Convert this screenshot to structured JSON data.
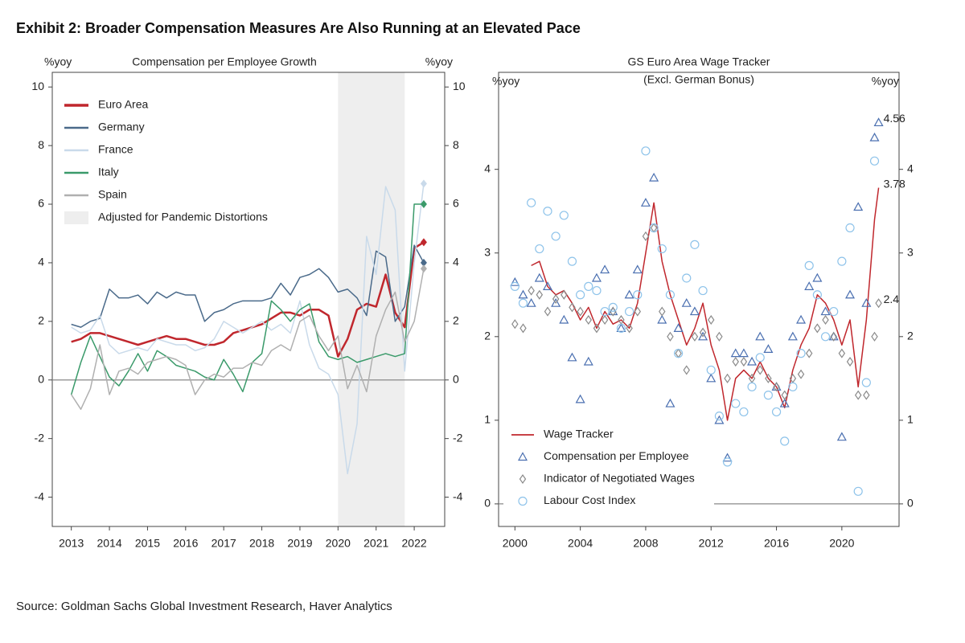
{
  "title": "Exhibit 2: Broader Compensation Measures Are Also Running at an Elevated Pace",
  "source": "Source: Goldman Sachs Global Investment Research, Haver Analytics",
  "chart_data": [
    {
      "type": "line",
      "title": "Compensation per Employee Growth",
      "y_label": "%yoy",
      "y2_label": "%yoy",
      "xlim": [
        2012.5,
        2022.8
      ],
      "xticks": [
        2013,
        2014,
        2015,
        2016,
        2017,
        2018,
        2019,
        2020,
        2021,
        2022
      ],
      "ylim": [
        -5,
        10.5
      ],
      "yticks": [
        -4,
        -2,
        0,
        2,
        4,
        6,
        8,
        10
      ],
      "y2lim": [
        -5,
        10.5
      ],
      "y2ticks": [
        -4,
        -2,
        0,
        2,
        4,
        6,
        8,
        10
      ],
      "zero_line": true,
      "end_markers": true,
      "legend": "upper left",
      "shade": {
        "x": [
          2020,
          2021.75
        ],
        "label": "Adjusted for Pandemic Distortions",
        "color": "#eeeeee"
      },
      "x": [
        2013,
        2013.25,
        2013.5,
        2013.75,
        2014,
        2014.25,
        2014.5,
        2014.75,
        2015,
        2015.25,
        2015.5,
        2015.75,
        2016,
        2016.25,
        2016.5,
        2016.75,
        2017,
        2017.25,
        2017.5,
        2017.75,
        2018,
        2018.25,
        2018.5,
        2018.75,
        2019,
        2019.25,
        2019.5,
        2019.75,
        2020,
        2020.25,
        2020.5,
        2020.75,
        2021,
        2021.25,
        2021.5,
        2021.75,
        2022,
        2022.25
      ],
      "series": [
        {
          "name": "Euro Area",
          "color": "#c0272d",
          "width": 2.5,
          "values": [
            1.3,
            1.4,
            1.6,
            1.6,
            1.5,
            1.4,
            1.3,
            1.2,
            1.3,
            1.4,
            1.5,
            1.4,
            1.4,
            1.3,
            1.2,
            1.2,
            1.3,
            1.6,
            1.7,
            1.8,
            1.9,
            2.1,
            2.3,
            2.3,
            2.2,
            2.4,
            2.4,
            2.2,
            0.8,
            1.4,
            2.4,
            2.6,
            2.5,
            3.6,
            2.3,
            1.8,
            4.5,
            4.7
          ]
        },
        {
          "name": "Germany",
          "color": "#4a6a8a",
          "width": 1.5,
          "values": [
            1.9,
            1.8,
            2.0,
            2.1,
            3.1,
            2.8,
            2.8,
            2.9,
            2.6,
            3.0,
            2.8,
            3.0,
            2.9,
            2.9,
            2.0,
            2.3,
            2.4,
            2.6,
            2.7,
            2.7,
            2.7,
            2.8,
            3.3,
            2.9,
            3.5,
            3.6,
            3.8,
            3.5,
            3.0,
            3.1,
            2.8,
            2.2,
            4.4,
            4.2,
            2.0,
            2.5,
            4.6,
            4.0
          ]
        },
        {
          "name": "France",
          "color": "#c9daea",
          "width": 1.5,
          "values": [
            1.8,
            1.6,
            1.7,
            2.2,
            1.2,
            0.9,
            1.0,
            1.1,
            1.0,
            1.4,
            1.3,
            1.2,
            1.2,
            1.0,
            1.1,
            1.4,
            2.0,
            1.8,
            1.6,
            1.8,
            2.0,
            1.7,
            1.9,
            1.6,
            2.7,
            1.2,
            0.4,
            0.2,
            -0.5,
            -3.2,
            -1.5,
            4.9,
            3.6,
            6.6,
            5.8,
            0.3,
            4.0,
            6.7
          ]
        },
        {
          "name": "Italy",
          "color": "#3a9a6a",
          "width": 1.5,
          "values": [
            -0.5,
            0.6,
            1.5,
            0.8,
            0.1,
            -0.2,
            0.3,
            0.9,
            0.3,
            1.0,
            0.8,
            0.5,
            0.4,
            0.3,
            0.1,
            0.0,
            0.7,
            0.2,
            -0.4,
            0.6,
            0.9,
            2.7,
            2.4,
            2.0,
            2.4,
            2.6,
            1.3,
            0.8,
            0.7,
            0.8,
            0.6,
            0.7,
            0.8,
            0.9,
            0.8,
            0.9,
            6.0,
            6.0
          ]
        },
        {
          "name": "Spain",
          "color": "#b0b0b0",
          "width": 1.5,
          "values": [
            -0.5,
            -1.0,
            -0.3,
            1.2,
            -0.5,
            0.3,
            0.4,
            0.2,
            0.6,
            0.7,
            0.8,
            0.7,
            0.5,
            -0.5,
            0.0,
            0.2,
            0.1,
            0.4,
            0.4,
            0.6,
            0.5,
            1.0,
            1.2,
            1.0,
            2.0,
            2.2,
            1.5,
            1.0,
            1.5,
            -0.3,
            0.5,
            -0.4,
            1.5,
            2.4,
            3.0,
            1.3,
            2.0,
            3.8
          ]
        }
      ]
    },
    {
      "type": "line",
      "title": "GS Euro Area Wage Tracker",
      "subtitle": "(Excl. German Bonus)",
      "y_label": "%yoy",
      "y2_label": "%yoy",
      "xlim": [
        1999,
        2023.5
      ],
      "xticks": [
        2000,
        2004,
        2008,
        2012,
        2016,
        2020
      ],
      "ylim": [
        -0.27,
        5.16
      ],
      "yticks": [
        0,
        1,
        2,
        3,
        4
      ],
      "y2lim": [
        -0.27,
        5.16
      ],
      "y2ticks": [
        0,
        1,
        2,
        3,
        4
      ],
      "zero_line": true,
      "legend": "lower left",
      "x": [
        2000,
        2000.5,
        2001,
        2001.5,
        2002,
        2002.5,
        2003,
        2003.5,
        2004,
        2004.5,
        2005,
        2005.5,
        2006,
        2006.5,
        2007,
        2007.5,
        2008,
        2008.5,
        2009,
        2009.5,
        2010,
        2010.5,
        2011,
        2011.5,
        2012,
        2012.5,
        2013,
        2013.5,
        2014,
        2014.5,
        2015,
        2015.5,
        2016,
        2016.5,
        2017,
        2017.5,
        2018,
        2018.5,
        2019,
        2019.5,
        2020,
        2020.5,
        2021,
        2021.5,
        2022,
        2022.25
      ],
      "series": [
        {
          "name": "Wage Tracker",
          "color": "#c0272d",
          "marker": "line",
          "end_label": true,
          "values": [
            null,
            null,
            2.85,
            2.9,
            2.6,
            2.5,
            2.55,
            2.4,
            2.2,
            2.35,
            2.1,
            2.3,
            2.15,
            2.2,
            2.1,
            2.4,
            3.0,
            3.6,
            2.9,
            2.5,
            2.2,
            1.9,
            2.1,
            2.4,
            1.9,
            1.6,
            1.0,
            1.5,
            1.6,
            1.5,
            1.7,
            1.5,
            1.4,
            1.15,
            1.6,
            1.9,
            2.1,
            2.5,
            2.4,
            2.2,
            1.9,
            2.2,
            1.4,
            2.2,
            3.4,
            3.78
          ]
        },
        {
          "name": "Compensation per Employee",
          "color": "#4a6fb0",
          "marker": "triangle",
          "end_label": true,
          "values": [
            2.65,
            2.5,
            2.4,
            2.7,
            2.6,
            2.4,
            2.2,
            1.75,
            1.25,
            1.7,
            2.7,
            2.8,
            2.3,
            2.1,
            2.5,
            2.8,
            3.6,
            3.9,
            2.2,
            1.2,
            2.1,
            2.4,
            2.3,
            2.0,
            1.5,
            1.0,
            0.55,
            1.8,
            1.8,
            1.7,
            2.0,
            1.85,
            1.4,
            1.2,
            2.0,
            2.2,
            2.6,
            2.7,
            2.3,
            2.0,
            0.8,
            2.5,
            3.55,
            2.4,
            4.38,
            4.56
          ]
        },
        {
          "name": "Indicator of Negotiated Wages",
          "color": "#8a8a8a",
          "marker": "diamond",
          "end_label": true,
          "values": [
            2.15,
            2.1,
            2.55,
            2.5,
            2.3,
            2.45,
            2.5,
            2.35,
            2.3,
            2.2,
            2.1,
            2.2,
            2.3,
            2.2,
            2.1,
            2.3,
            3.2,
            3.3,
            2.3,
            2.0,
            1.8,
            1.6,
            2.0,
            2.05,
            2.2,
            2.0,
            1.5,
            1.7,
            1.7,
            1.5,
            1.6,
            1.5,
            1.4,
            1.3,
            1.5,
            1.55,
            1.8,
            2.1,
            2.2,
            2.0,
            1.8,
            1.7,
            1.3,
            1.3,
            2.0,
            2.4
          ]
        },
        {
          "name": "Labour Cost Index",
          "color": "#8ec3ea",
          "marker": "circle",
          "values": [
            2.6,
            2.4,
            3.6,
            3.05,
            3.5,
            3.2,
            3.45,
            2.9,
            2.5,
            2.6,
            2.55,
            2.3,
            2.35,
            2.1,
            2.3,
            2.5,
            4.22,
            3.3,
            3.05,
            2.5,
            1.8,
            2.7,
            3.1,
            2.55,
            1.6,
            1.05,
            0.5,
            1.2,
            1.1,
            1.4,
            1.75,
            1.3,
            1.1,
            0.75,
            1.4,
            1.8,
            2.85,
            2.5,
            2.0,
            2.3,
            2.9,
            3.3,
            0.15,
            1.45,
            4.1,
            null
          ]
        }
      ]
    }
  ]
}
